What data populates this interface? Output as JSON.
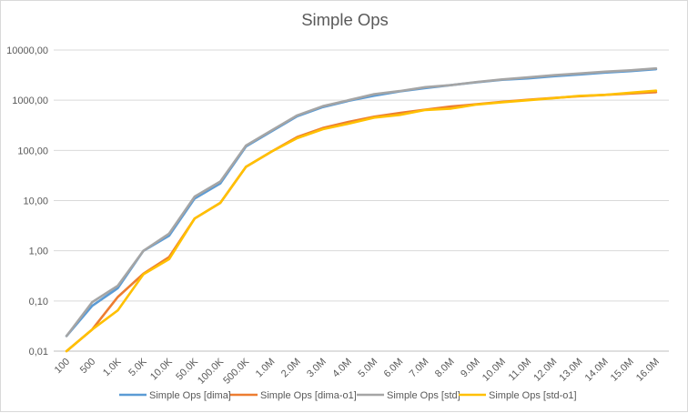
{
  "chart_data": {
    "type": "line",
    "title": "Simple Ops",
    "xlabel": "",
    "ylabel": "",
    "yscale": "log",
    "ylim": [
      0.01,
      10000
    ],
    "y_ticks": [
      "0,01",
      "0,10",
      "1,00",
      "10,00",
      "100,00",
      "1000,00",
      "10000,00"
    ],
    "grid": "horizontal",
    "legend_position": "bottom",
    "categories": [
      "100",
      "500",
      "1.0K",
      "5.0K",
      "10.0K",
      "50.0K",
      "100.0K",
      "500.0K",
      "1.0M",
      "2.0M",
      "3.0M",
      "4.0M",
      "5.0M",
      "6.0M",
      "7.0M",
      "8.0M",
      "9.0M",
      "10.0M",
      "11.0M",
      "12.0M",
      "13.0M",
      "14.0M",
      "15.0M",
      "16.0M"
    ],
    "series": [
      {
        "name": "Simple Ops [dima]",
        "color": "#5b9bd5",
        "values": [
          0.02,
          0.08,
          0.18,
          1.0,
          2.0,
          11.0,
          22.0,
          120,
          240,
          480,
          730,
          970,
          1230,
          1500,
          1750,
          2000,
          2280,
          2550,
          2720,
          3000,
          3250,
          3550,
          3800,
          4150
        ]
      },
      {
        "name": "Simple Ops [dima-o1]",
        "color": "#ed7d31",
        "values": [
          0.01,
          0.027,
          0.12,
          0.35,
          0.75,
          4.4,
          9.0,
          47,
          95,
          185,
          280,
          370,
          470,
          560,
          650,
          750,
          830,
          930,
          1020,
          1110,
          1200,
          1280,
          1360,
          1450
        ]
      },
      {
        "name": "Simple Ops [std]",
        "color": "#a5a5a5",
        "values": [
          0.02,
          0.095,
          0.2,
          1.0,
          2.2,
          12.0,
          24.0,
          125,
          250,
          500,
          760,
          1000,
          1320,
          1520,
          1820,
          2000,
          2300,
          2600,
          2850,
          3150,
          3400,
          3700,
          3950,
          4300
        ]
      },
      {
        "name": "Simple Ops [std-o1]",
        "color": "#ffc000",
        "values": [
          0.01,
          0.027,
          0.065,
          0.34,
          0.68,
          4.4,
          9.0,
          47,
          95,
          175,
          265,
          340,
          450,
          510,
          640,
          680,
          820,
          910,
          1000,
          1100,
          1220,
          1280,
          1410,
          1550
        ]
      }
    ]
  }
}
